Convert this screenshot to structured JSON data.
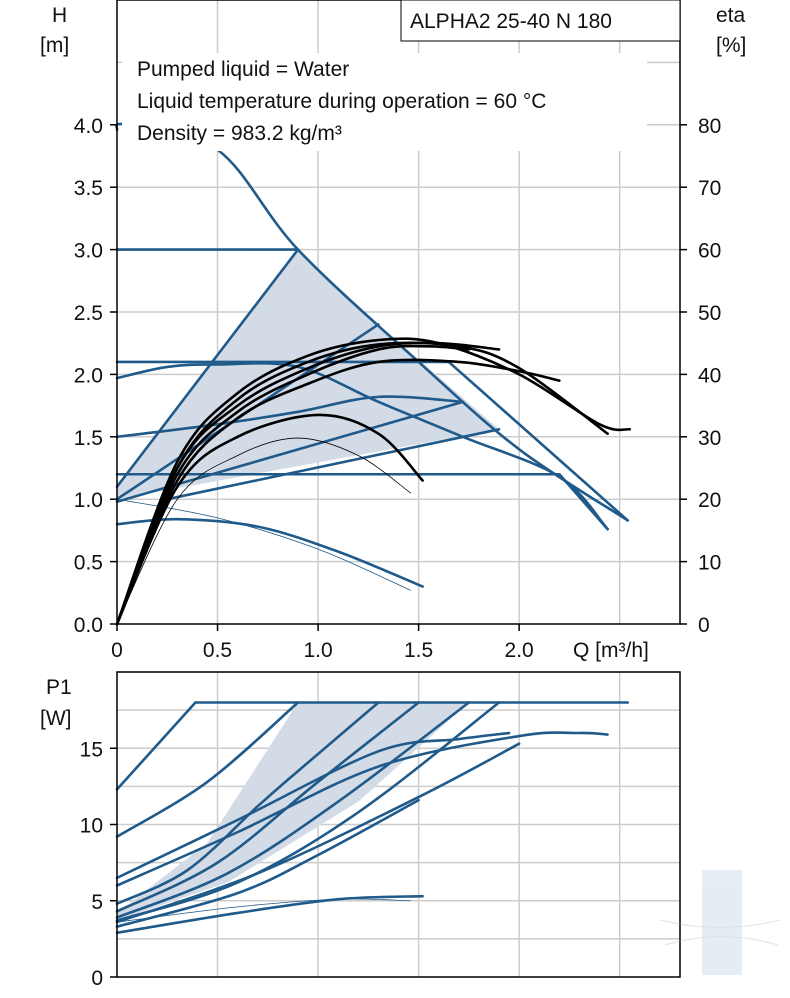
{
  "title": "ALPHA2 25-40 N 180",
  "info_lines": [
    "Pumped liquid = Water",
    "Liquid temperature during operation = 60 °C",
    "Density = 983.2 kg/m³"
  ],
  "colors": {
    "curve": "#1f5a8a",
    "efficiency": "#000000",
    "area_fill": "#d3dbe6",
    "grid": "#cccccc"
  },
  "chart_data": [
    {
      "type": "line",
      "panel": "head",
      "ylabel": "H\n[m]",
      "y2label": "eta\n[%]",
      "xlabel": "Q [m³/h]",
      "xlim": [
        0,
        2.8
      ],
      "ylim": [
        0,
        5.0
      ],
      "y2lim": [
        0,
        100
      ],
      "x_ticks": [
        "0",
        "0.5",
        "1.0",
        "1.5",
        "2.0"
      ],
      "y_ticks": [
        "0.0",
        "0.5",
        "1.0",
        "1.5",
        "2.0",
        "2.5",
        "3.0",
        "3.5",
        "4.0"
      ],
      "y2_ticks": [
        "0",
        "10",
        "20",
        "30",
        "40",
        "50",
        "60",
        "70",
        "80"
      ],
      "grid": true,
      "shaded_region": [
        [
          0,
          1.1
        ],
        [
          0.9,
          3.0
        ],
        [
          1.3,
          2.4
        ],
        [
          1.9,
          1.56
        ],
        [
          0,
          1.0
        ]
      ],
      "series": [
        {
          "role": "max-curve",
          "points": [
            [
              0,
              3.96
            ],
            [
              0.05,
              4.0
            ],
            [
              0.5,
              3.8
            ],
            [
              0.9,
              3.0
            ],
            [
              1.5,
              2.1
            ],
            [
              2.0,
              1.4
            ],
            [
              2.54,
              0.83
            ]
          ]
        },
        {
          "role": "prop-pressure",
          "points": [
            [
              0,
              1.1
            ],
            [
              0.9,
              3.0
            ]
          ]
        },
        {
          "role": "prop-pressure",
          "points": [
            [
              0,
              1.0
            ],
            [
              1.3,
              2.4
            ]
          ]
        },
        {
          "role": "prop-pressure",
          "points": [
            [
              0,
              0.98
            ],
            [
              1.72,
              1.78
            ]
          ]
        },
        {
          "role": "prop-pressure",
          "points": [
            [
              0.25,
              1.0
            ],
            [
              1.9,
              1.56
            ]
          ]
        },
        {
          "role": "const-pressure",
          "points": [
            [
              0,
              3.0
            ],
            [
              0.9,
              3.0
            ]
          ]
        },
        {
          "role": "const-pressure",
          "points": [
            [
              0,
              2.1
            ],
            [
              1.65,
              2.1
            ],
            [
              2.54,
              0.83
            ]
          ]
        },
        {
          "role": "const-pressure",
          "points": [
            [
              0,
              1.2
            ],
            [
              2.2,
              1.2
            ],
            [
              2.44,
              0.76
            ]
          ]
        },
        {
          "role": "speed-curve",
          "points": [
            [
              0,
              1.97
            ],
            [
              0.25,
              2.06
            ],
            [
              0.5,
              2.08
            ],
            [
              0.9,
              2.06
            ],
            [
              1.3,
              1.78
            ],
            [
              1.72,
              1.5
            ],
            [
              2.2,
              1.18
            ],
            [
              2.44,
              0.76
            ]
          ]
        },
        {
          "role": "speed-curve",
          "points": [
            [
              0,
              1.5
            ],
            [
              0.5,
              1.6
            ],
            [
              0.9,
              1.7
            ],
            [
              1.3,
              1.82
            ],
            [
              1.72,
              1.78
            ]
          ]
        },
        {
          "role": "speed-curve",
          "points": [
            [
              0,
              0.8
            ],
            [
              0.3,
              0.84
            ],
            [
              0.7,
              0.78
            ],
            [
              1.1,
              0.58
            ],
            [
              1.52,
              0.3
            ]
          ]
        },
        {
          "role": "speed-curve-thin",
          "points": [
            [
              0,
              1.0
            ],
            [
              0.5,
              0.85
            ],
            [
              1.0,
              0.6
            ],
            [
              1.46,
              0.27
            ]
          ]
        },
        {
          "role": "efficiency",
          "points": [
            [
              0,
              0
            ],
            [
              0.3,
              26
            ],
            [
              0.6,
              37
            ],
            [
              0.95,
              43
            ],
            [
              1.3,
              45.5
            ],
            [
              1.6,
              45
            ],
            [
              2.0,
              40
            ],
            [
              2.4,
              32
            ],
            [
              2.55,
              31.2
            ]
          ]
        },
        {
          "role": "efficiency",
          "points": [
            [
              0,
              0
            ],
            [
              0.3,
              25
            ],
            [
              0.6,
              36
            ],
            [
              0.95,
              42
            ],
            [
              1.3,
              44.8
            ],
            [
              1.7,
              44.5
            ],
            [
              2.0,
              41
            ],
            [
              2.44,
              30.5
            ]
          ]
        },
        {
          "role": "efficiency",
          "points": [
            [
              0,
              0
            ],
            [
              0.3,
              25
            ],
            [
              0.6,
              35
            ],
            [
              0.95,
              41
            ],
            [
              1.3,
              44.5
            ],
            [
              1.6,
              45
            ],
            [
              1.9,
              44
            ]
          ]
        },
        {
          "role": "efficiency",
          "points": [
            [
              0,
              0
            ],
            [
              0.3,
              24
            ],
            [
              0.6,
              34
            ],
            [
              0.95,
              40
            ],
            [
              1.3,
              44
            ],
            [
              1.55,
              44.5
            ],
            [
              1.75,
              44
            ]
          ]
        },
        {
          "role": "efficiency",
          "points": [
            [
              0,
              0
            ],
            [
              0.3,
              23
            ],
            [
              0.6,
              33
            ],
            [
              0.95,
              38.5
            ],
            [
              1.3,
              42
            ],
            [
              1.7,
              42
            ],
            [
              2.0,
              40.5
            ],
            [
              2.2,
              39
            ]
          ]
        },
        {
          "role": "efficiency",
          "points": [
            [
              0,
              0
            ],
            [
              0.3,
              22
            ],
            [
              0.6,
              30
            ],
            [
              1.0,
              33.5
            ],
            [
              1.3,
              30.5
            ],
            [
              1.52,
              23
            ]
          ]
        },
        {
          "role": "efficiency-thin",
          "points": [
            [
              0,
              0
            ],
            [
              0.3,
              20
            ],
            [
              0.6,
              27
            ],
            [
              0.9,
              29.8
            ],
            [
              1.2,
              27
            ],
            [
              1.46,
              21
            ]
          ]
        }
      ]
    },
    {
      "type": "line",
      "panel": "power",
      "ylabel": "P1\n[W]",
      "xlim": [
        0,
        2.8
      ],
      "ylim": [
        0,
        20
      ],
      "y_ticks": [
        "0",
        "5",
        "10",
        "15"
      ],
      "grid": true,
      "shaded_region": [
        [
          0,
          4.2
        ],
        [
          0.45,
          8.8
        ],
        [
          0.9,
          18
        ],
        [
          1.75,
          18
        ],
        [
          1.2,
          11.5
        ],
        [
          0.55,
          6.2
        ],
        [
          0,
          3.7
        ]
      ],
      "series": [
        {
          "role": "max-line",
          "points": [
            [
              0.39,
              18
            ],
            [
              2.54,
              18
            ]
          ]
        },
        {
          "role": "power",
          "points": [
            [
              0,
              12.3
            ],
            [
              0.39,
              18
            ]
          ]
        },
        {
          "role": "power",
          "points": [
            [
              0,
              9.2
            ],
            [
              0.45,
              12.8
            ],
            [
              0.9,
              18
            ]
          ]
        },
        {
          "role": "power",
          "points": [
            [
              0,
              6.5
            ],
            [
              0.6,
              10.3
            ],
            [
              1.3,
              14.8
            ],
            [
              1.7,
              15.6
            ],
            [
              1.95,
              16
            ]
          ]
        },
        {
          "role": "power",
          "points": [
            [
              0,
              6.0
            ],
            [
              0.6,
              9.5
            ],
            [
              1.3,
              13.8
            ],
            [
              2.0,
              15.8
            ],
            [
              2.3,
              16.0
            ],
            [
              2.44,
              15.9
            ]
          ]
        },
        {
          "role": "power",
          "points": [
            [
              0,
              4.8
            ],
            [
              0.35,
              7.0
            ],
            [
              0.7,
              11.2
            ],
            [
              0.9,
              13.5
            ],
            [
              1.3,
              18
            ]
          ]
        },
        {
          "role": "power",
          "points": [
            [
              0,
              4.3
            ],
            [
              0.5,
              7.5
            ],
            [
              1.0,
              12.8
            ],
            [
              1.5,
              18
            ]
          ]
        },
        {
          "role": "power",
          "points": [
            [
              0,
              3.9
            ],
            [
              0.55,
              6.8
            ],
            [
              1.1,
              11.5
            ],
            [
              1.75,
              18
            ]
          ]
        },
        {
          "role": "power",
          "points": [
            [
              0,
              3.7
            ],
            [
              0.6,
              6.2
            ],
            [
              1.2,
              10.8
            ],
            [
              1.9,
              18
            ]
          ]
        },
        {
          "role": "power",
          "points": [
            [
              0,
              3.6
            ],
            [
              0.7,
              6.8
            ],
            [
              1.5,
              11.8
            ],
            [
              2.0,
              15.3
            ]
          ]
        },
        {
          "role": "power",
          "points": [
            [
              0,
              3.3
            ],
            [
              0.6,
              5.5
            ],
            [
              1.0,
              8.0
            ],
            [
              1.5,
              11.6
            ]
          ]
        },
        {
          "role": "power",
          "points": [
            [
              0,
              2.9
            ],
            [
              0.6,
              4.2
            ],
            [
              1.1,
              5.1
            ],
            [
              1.52,
              5.3
            ]
          ]
        },
        {
          "role": "power-thin",
          "points": [
            [
              0,
              3.6
            ],
            [
              0.6,
              4.6
            ],
            [
              1.1,
              5.1
            ],
            [
              1.46,
              5.0
            ]
          ]
        }
      ]
    }
  ]
}
